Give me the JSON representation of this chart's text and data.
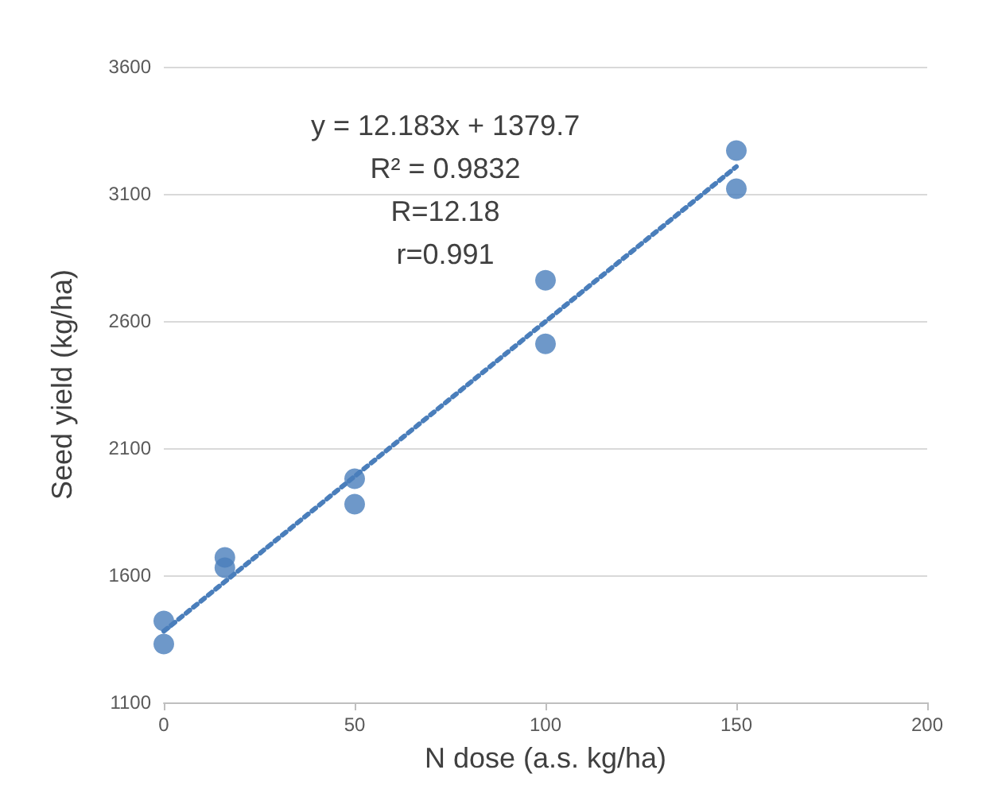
{
  "chart_data": {
    "type": "scatter",
    "xlabel": "N dose (a.s. kg/ha)",
    "ylabel": "Seed yield (kg/ha)",
    "xlim": [
      0,
      200
    ],
    "xticks": [
      0,
      50,
      100,
      150,
      200
    ],
    "ylim": [
      1100,
      3600
    ],
    "yticks": [
      1100,
      1600,
      2100,
      2600,
      3100,
      3600
    ],
    "grid": "y",
    "marker": "circle",
    "series": [
      {
        "color": "#4a7ebb",
        "x": [
          0,
          0,
          16,
          16,
          50,
          50,
          100,
          100,
          150,
          150
        ],
        "values": [
          1420,
          1330,
          1670,
          1630,
          1980,
          1880,
          2760,
          2510,
          3270,
          3120
        ]
      },
      {
        "type": "line",
        "color": "#4a7ebb",
        "line_style": "dotted",
        "marker": "none",
        "x": [
          0,
          150
        ],
        "values": [
          1380,
          3207
        ]
      }
    ],
    "annotations": [
      "y = 12.183x + 1379.7",
      "R² = 0.9832",
      "R=12.18",
      "r=0.991"
    ]
  }
}
